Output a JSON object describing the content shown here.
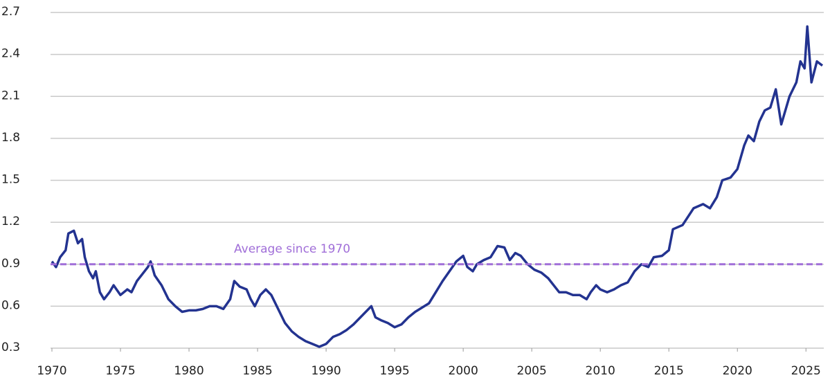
{
  "chart_data": {
    "type": "line",
    "x": [
      1970.0,
      1970.3,
      1970.6,
      1971.0,
      1971.2,
      1971.6,
      1971.9,
      1972.2,
      1972.4,
      1972.7,
      1973.0,
      1973.2,
      1973.5,
      1973.8,
      1974.2,
      1974.5,
      1975.0,
      1975.5,
      1975.8,
      1976.2,
      1976.6,
      1977.0,
      1977.2,
      1977.5,
      1978.0,
      1978.5,
      1979.0,
      1979.5,
      1980.0,
      1980.5,
      1981.0,
      1981.5,
      1982.0,
      1982.5,
      1983.0,
      1983.3,
      1983.7,
      1984.2,
      1984.5,
      1984.8,
      1985.2,
      1985.6,
      1986.0,
      1986.5,
      1987.0,
      1987.5,
      1988.0,
      1988.5,
      1989.0,
      1989.5,
      1990.0,
      1990.5,
      1991.0,
      1991.5,
      1992.0,
      1992.5,
      1993.0,
      1993.3,
      1993.6,
      1994.0,
      1994.5,
      1995.0,
      1995.5,
      1996.0,
      1996.5,
      1997.0,
      1997.5,
      1998.0,
      1998.5,
      1999.0,
      1999.5,
      2000.0,
      2000.3,
      2000.7,
      2001.0,
      2001.5,
      2002.0,
      2002.5,
      2003.0,
      2003.4,
      2003.8,
      2004.2,
      2004.7,
      2005.2,
      2005.7,
      2006.2,
      2006.6,
      2007.0,
      2007.5,
      2008.0,
      2008.5,
      2009.0,
      2009.3,
      2009.7,
      2010.0,
      2010.5,
      2011.0,
      2011.5,
      2012.0,
      2012.5,
      2013.0,
      2013.5,
      2013.9,
      2014.5,
      2015.0,
      2015.3,
      2016.0,
      2016.8,
      2017.5,
      2018.0,
      2018.5,
      2018.9,
      2019.5,
      2020.0,
      2020.5,
      2020.8,
      2021.2,
      2021.6,
      2022.0,
      2022.4,
      2022.8,
      2023.2,
      2023.8,
      2024.3,
      2024.6,
      2024.9,
      2025.1,
      2025.4,
      2025.8,
      2026.2
    ],
    "values": [
      0.92,
      0.88,
      0.95,
      1.0,
      1.12,
      1.14,
      1.05,
      1.08,
      0.95,
      0.85,
      0.8,
      0.85,
      0.7,
      0.65,
      0.7,
      0.75,
      0.68,
      0.72,
      0.7,
      0.78,
      0.83,
      0.88,
      0.92,
      0.82,
      0.75,
      0.65,
      0.6,
      0.56,
      0.57,
      0.57,
      0.58,
      0.6,
      0.6,
      0.58,
      0.65,
      0.78,
      0.74,
      0.72,
      0.65,
      0.6,
      0.68,
      0.72,
      0.68,
      0.58,
      0.48,
      0.42,
      0.38,
      0.35,
      0.33,
      0.31,
      0.33,
      0.38,
      0.4,
      0.43,
      0.47,
      0.52,
      0.57,
      0.6,
      0.52,
      0.5,
      0.48,
      0.45,
      0.47,
      0.52,
      0.56,
      0.59,
      0.62,
      0.7,
      0.78,
      0.85,
      0.92,
      0.96,
      0.88,
      0.85,
      0.9,
      0.93,
      0.95,
      1.03,
      1.02,
      0.93,
      0.98,
      0.96,
      0.9,
      0.86,
      0.84,
      0.8,
      0.75,
      0.7,
      0.7,
      0.68,
      0.68,
      0.65,
      0.7,
      0.75,
      0.72,
      0.7,
      0.72,
      0.75,
      0.77,
      0.85,
      0.9,
      0.88,
      0.95,
      0.96,
      1.0,
      1.15,
      1.18,
      1.3,
      1.33,
      1.3,
      1.38,
      1.5,
      1.52,
      1.58,
      1.75,
      1.82,
      1.78,
      1.92,
      2.0,
      2.02,
      2.15,
      1.9,
      2.1,
      2.2,
      2.35,
      2.3,
      2.6,
      2.2,
      2.35,
      2.32
    ],
    "color": "#233390",
    "xlim": [
      1970,
      2026.3
    ],
    "xticks": [
      1970,
      1975,
      1980,
      1985,
      1990,
      1995,
      2000,
      2005,
      2010,
      2015,
      2020,
      2025
    ],
    "ylim": [
      0.3,
      2.7
    ],
    "yticks": [
      0.3,
      0.6,
      0.9,
      1.2,
      1.5,
      1.8,
      2.1,
      2.4,
      2.7
    ],
    "grid": true,
    "reference_line": {
      "value": 0.9,
      "label": "Average since 1970",
      "color": "#a06ed8"
    }
  }
}
